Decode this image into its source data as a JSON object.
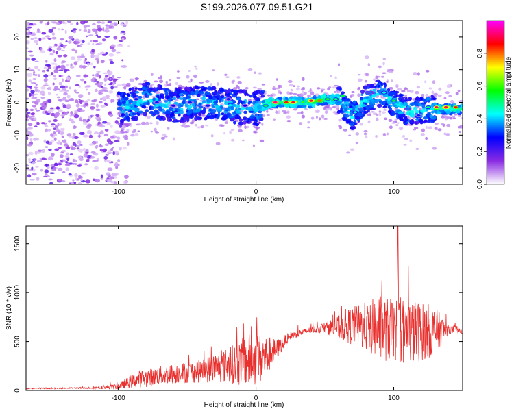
{
  "title": "S199.2026.077.09.51.G21",
  "chart_data": [
    {
      "type": "heatmap",
      "xlabel": "Height of straight line (km)",
      "ylabel": "Frequency (Hz)",
      "xlim": [
        -167,
        150
      ],
      "ylim": [
        -25,
        25
      ],
      "xticks": [
        -100,
        0,
        100
      ],
      "yticks": [
        20,
        10,
        0,
        -10,
        -20
      ],
      "colorbar": {
        "label": "Normalized spectral amplitude",
        "range": [
          0.0,
          1.0
        ],
        "ticks": [
          "0.0",
          "0.2",
          "0.4",
          "0.6",
          "0.8"
        ],
        "colors": [
          "#ffffff",
          "#8a2be2",
          "#0000ff",
          "#00ffff",
          "#00ff00",
          "#ffff00",
          "#ff0000",
          "#ff00ff"
        ]
      },
      "ridge": {
        "x": [
          -100,
          -80,
          -60,
          -40,
          -20,
          0,
          10,
          20,
          30,
          40,
          50,
          60,
          70,
          80,
          90,
          100,
          110,
          120,
          130,
          140,
          150
        ],
        "y": [
          -2,
          1,
          -1,
          0,
          -1,
          -2,
          0,
          0,
          0,
          0,
          1,
          1,
          -4,
          1,
          3,
          0,
          -3,
          -2,
          -2,
          -2,
          -2
        ]
      }
    },
    {
      "type": "line",
      "xlabel": "Height of straight line (km)",
      "ylabel": "SNR (10 * v/v)",
      "xlim": [
        -167,
        150
      ],
      "ylim": [
        0,
        1680
      ],
      "xticks": [
        -100,
        0,
        100
      ],
      "yticks": [
        0,
        500,
        1000,
        1500
      ],
      "color": "#e8312f",
      "envelope": {
        "x": [
          -167,
          -120,
          -100,
          -85,
          -60,
          -40,
          -20,
          -5,
          5,
          15,
          25,
          40,
          50,
          60,
          70,
          80,
          90,
          100,
          110,
          120,
          130,
          140,
          150
        ],
        "mean": [
          20,
          25,
          40,
          120,
          170,
          200,
          260,
          300,
          330,
          420,
          560,
          620,
          640,
          650,
          660,
          650,
          640,
          620,
          600,
          600,
          610,
          620,
          620
        ],
        "spread": [
          5,
          8,
          30,
          90,
          100,
          120,
          180,
          280,
          250,
          100,
          40,
          30,
          60,
          120,
          200,
          250,
          350,
          320,
          350,
          300,
          250,
          40,
          40
        ]
      },
      "peak": {
        "x": 103,
        "y": 1680
      }
    }
  ]
}
